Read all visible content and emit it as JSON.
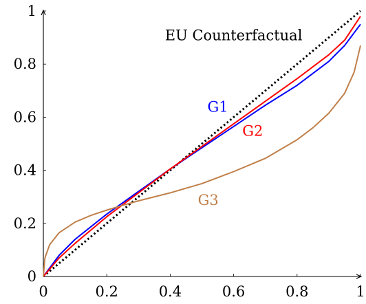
{
  "chart_data": {
    "type": "line",
    "title": "",
    "xlabel": "",
    "ylabel": "",
    "xlim": [
      0,
      1
    ],
    "ylim": [
      0,
      1
    ],
    "grid": false,
    "x_ticks": [
      "0",
      "0.2",
      "0.4",
      "0.6",
      "0.8",
      "1"
    ],
    "y_ticks": [
      "0",
      "0.2",
      "0.4",
      "0.6",
      "0.8",
      "1"
    ],
    "annotations": [
      {
        "text": "EU Counterfactual",
        "x": 0.6,
        "y": 0.89,
        "color": "#000000"
      },
      {
        "text": "G1",
        "x": 0.55,
        "y": 0.62,
        "color": "#0000ff"
      },
      {
        "text": "G2",
        "x": 0.66,
        "y": 0.53,
        "color": "#ff0000"
      },
      {
        "text": "G3",
        "x": 0.52,
        "y": 0.27,
        "color": "#c0804a"
      }
    ],
    "series": [
      {
        "name": "EU Counterfactual",
        "color": "#000000",
        "style": "dotted",
        "x": [
          0,
          1
        ],
        "y": [
          0,
          1
        ]
      },
      {
        "name": "G1",
        "color": "#0000ff",
        "style": "solid",
        "x": [
          0,
          0.05,
          0.1,
          0.2,
          0.3,
          0.4,
          0.5,
          0.6,
          0.7,
          0.8,
          0.9,
          0.95,
          1
        ],
        "y": [
          0,
          0.08,
          0.14,
          0.235,
          0.32,
          0.405,
          0.485,
          0.565,
          0.645,
          0.72,
          0.81,
          0.87,
          0.95
        ]
      },
      {
        "name": "G2",
        "color": "#ff0000",
        "style": "solid",
        "x": [
          0,
          0.05,
          0.1,
          0.2,
          0.3,
          0.4,
          0.5,
          0.6,
          0.7,
          0.8,
          0.9,
          0.95,
          1
        ],
        "y": [
          0,
          0.07,
          0.125,
          0.225,
          0.315,
          0.405,
          0.49,
          0.575,
          0.66,
          0.745,
          0.835,
          0.89,
          0.98
        ]
      },
      {
        "name": "G3",
        "color": "#c0804a",
        "style": "solid",
        "x": [
          0,
          0.005,
          0.02,
          0.05,
          0.1,
          0.15,
          0.2,
          0.25,
          0.3,
          0.4,
          0.5,
          0.6,
          0.7,
          0.8,
          0.85,
          0.9,
          0.95,
          0.98,
          1
        ],
        "y": [
          0,
          0.07,
          0.12,
          0.165,
          0.205,
          0.23,
          0.25,
          0.268,
          0.285,
          0.315,
          0.35,
          0.395,
          0.445,
          0.515,
          0.56,
          0.615,
          0.69,
          0.77,
          0.87
        ]
      }
    ]
  }
}
